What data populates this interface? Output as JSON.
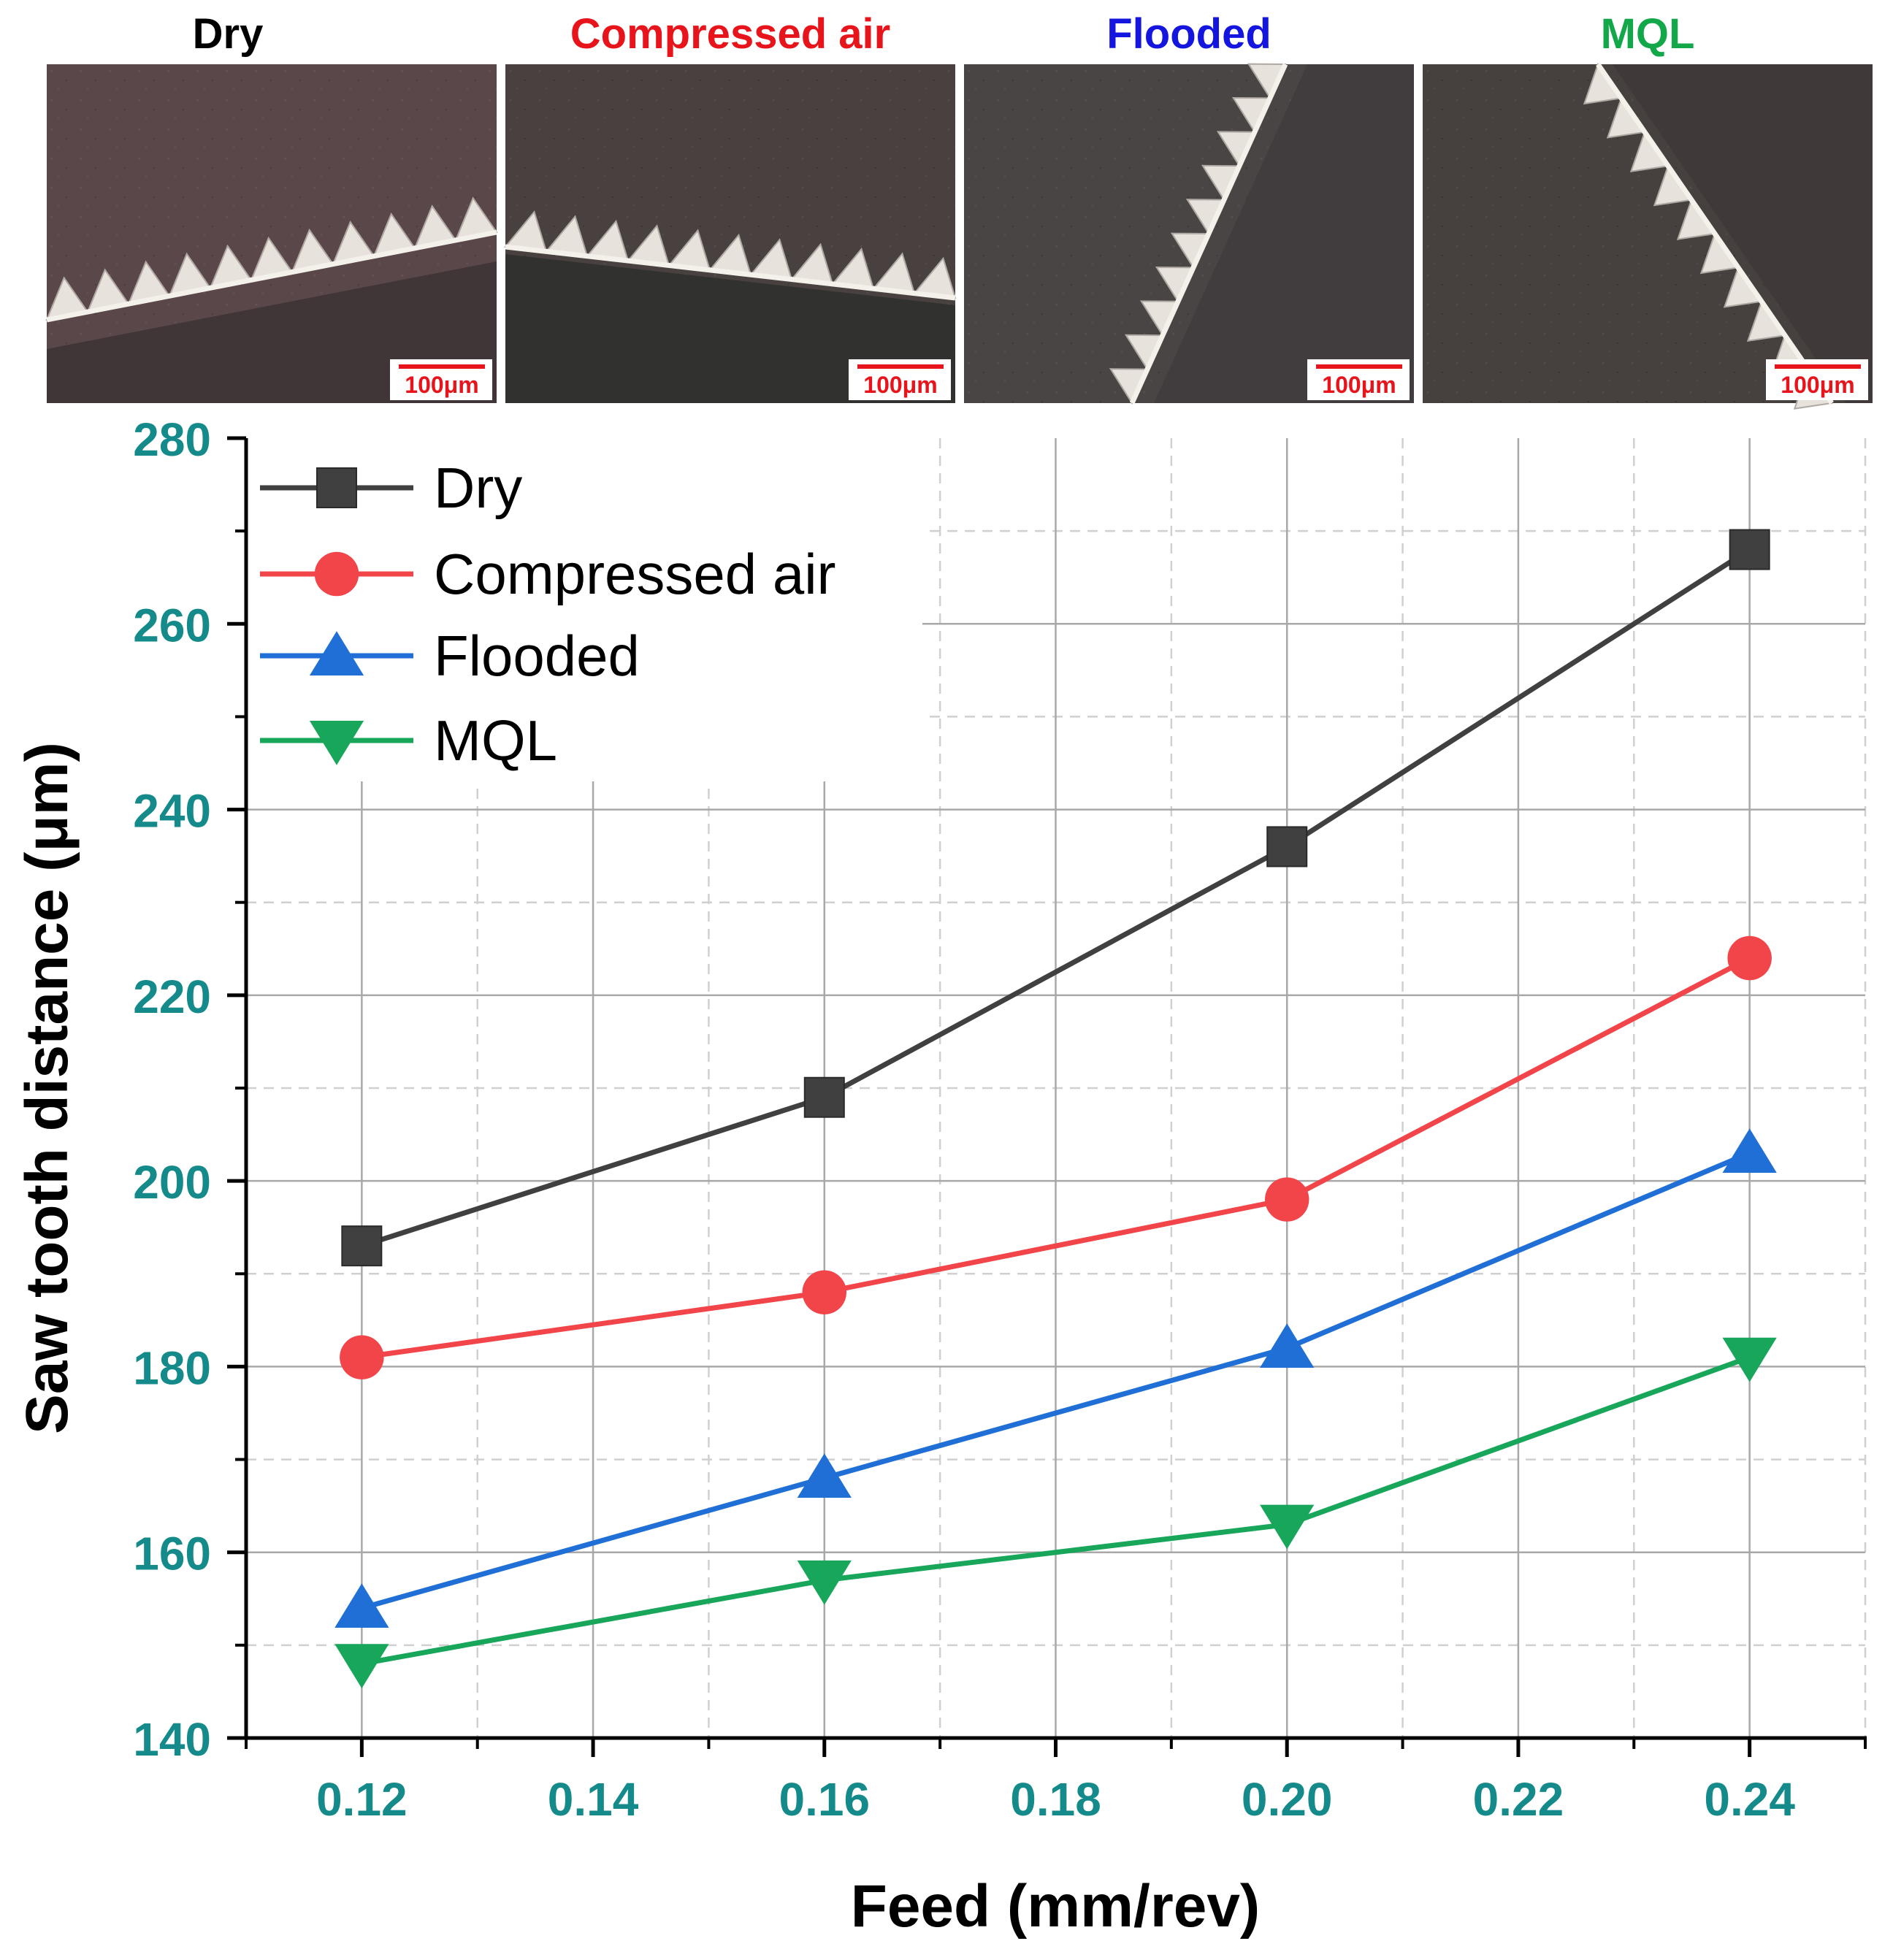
{
  "micrographs": [
    {
      "label": "Dry",
      "label_color": "#000000",
      "scale_label": "100μm",
      "tooth_dir": "rising-right"
    },
    {
      "label": "Compressed air",
      "label_color": "#e8141b",
      "scale_label": "100μm",
      "tooth_dir": "falling-right"
    },
    {
      "label": "Flooded",
      "label_color": "#1416e0",
      "scale_label": "100μm",
      "tooth_dir": "steep-rising"
    },
    {
      "label": "MQL",
      "label_color": "#12a84a",
      "scale_label": "100μm",
      "tooth_dir": "steep-falling"
    }
  ],
  "chart_data": {
    "type": "line",
    "title": "",
    "xlabel": "Feed (mm/rev)",
    "ylabel": "Saw tooth distance (μm)",
    "x": [
      0.12,
      0.16,
      0.2,
      0.24
    ],
    "xlim": [
      0.11,
      0.25
    ],
    "ylim": [
      140,
      280
    ],
    "x_ticks": [
      "0.12",
      "0.14",
      "0.16",
      "0.18",
      "0.20",
      "0.22",
      "0.24"
    ],
    "x_tick_values": [
      0.12,
      0.14,
      0.16,
      0.18,
      0.2,
      0.22,
      0.24
    ],
    "y_ticks": [
      "140",
      "160",
      "180",
      "200",
      "220",
      "240",
      "260",
      "280"
    ],
    "y_tick_values": [
      140,
      160,
      180,
      200,
      220,
      240,
      260,
      280
    ],
    "grid": true,
    "legend_position": "top-left",
    "series": [
      {
        "name": "Dry",
        "color": "#404040",
        "marker": "square",
        "values": [
          193,
          209,
          236,
          268
        ]
      },
      {
        "name": "Compressed air",
        "color": "#f2454a",
        "marker": "circle",
        "values": [
          181,
          188,
          198,
          224
        ]
      },
      {
        "name": "Flooded",
        "color": "#1f6fd6",
        "marker": "triangle-up",
        "values": [
          154,
          168,
          182,
          203
        ]
      },
      {
        "name": "MQL",
        "color": "#18a75a",
        "marker": "triangle-down",
        "values": [
          148,
          157,
          163,
          181
        ]
      }
    ],
    "colors": {
      "tick_label": "#148a8a",
      "axis": "#000000",
      "grid_major": "#a8a8a8",
      "grid_minor": "#d0d0d0"
    }
  }
}
